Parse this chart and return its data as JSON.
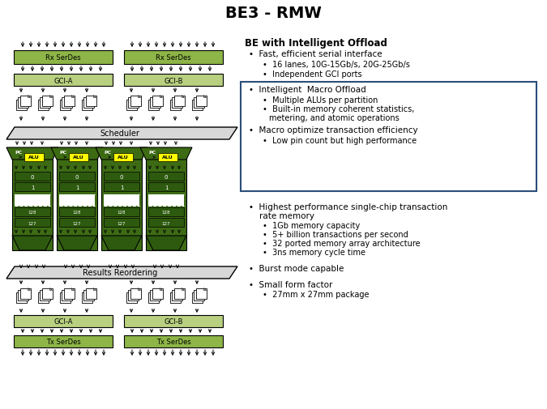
{
  "title": "BE3 - RMW",
  "title_fontsize": 14,
  "background_color": "#ffffff",
  "dark_green": "#2d5a0e",
  "medium_green": "#3d6b14",
  "light_green": "#6b9e2a",
  "lighter_green": "#8db547",
  "lightest_green": "#b8d080",
  "yellow": "#ffff00",
  "white": "#ffffff",
  "black": "#000000",
  "gray_bar": "#d8d8d8",
  "box_outline": "#2b4e7a",
  "box_fill": "#ffffff",
  "right_panel": {
    "bold_title": "BE with Intelligent Offload",
    "bullet1": "Fast, efficient serial interface",
    "sub_bullet1a": "16 lanes, 10G-15Gb/s, 20G-25Gb/s",
    "sub_bullet1b": "Independent GCI ports",
    "box_bullet1": "Intelligent  Macro Offload",
    "box_sub1a": "Multiple ALUs per partition",
    "box_sub1b": "Built-in memory coherent statistics,",
    "box_sub1b2": "metering, and atomic operations",
    "box_bullet2": "Macro optimize transaction efficiency",
    "box_sub2a": "Low pin count but high performance",
    "bullet3": "Highest performance single-chip transaction",
    "bullet3b": "rate memory",
    "sub_bullet3a": "1Gb memory capacity",
    "sub_bullet3b": "5+ billion transactions per second",
    "sub_bullet3c": "32 ported memory array architecture",
    "sub_bullet3d": "3ns memory cycle time",
    "bullet4": "Burst mode capable",
    "bullet5": "Small form factor",
    "sub_bullet5a": "27mm x 27mm package"
  }
}
